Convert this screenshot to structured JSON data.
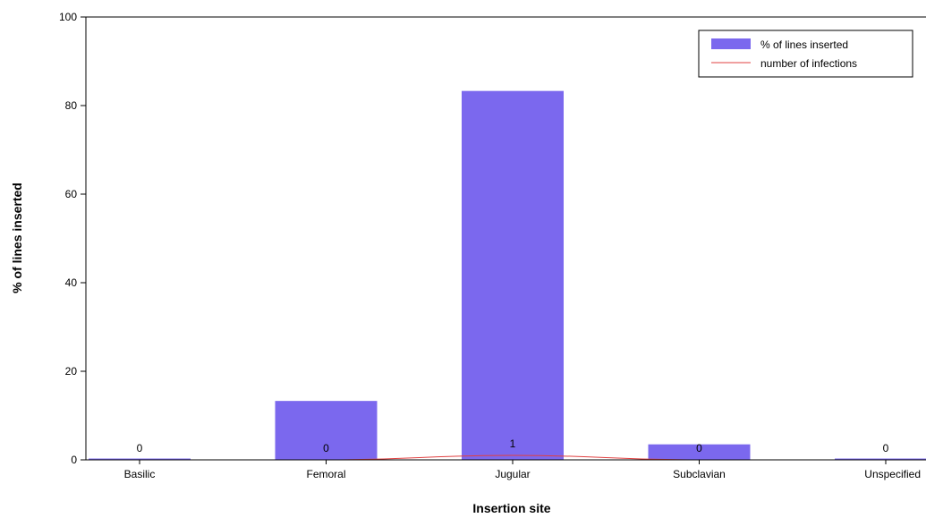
{
  "chart_data": {
    "type": "bar",
    "title": "",
    "xlabel": "Insertion site",
    "ylabel": "% of lines inserted",
    "ylim": [
      0,
      100
    ],
    "yticks": [
      0,
      20,
      40,
      60,
      80,
      100
    ],
    "categories": [
      "Basilic",
      "Femoral",
      "Jugular",
      "Subclavian",
      "Unspecified"
    ],
    "series": [
      {
        "name": "% of lines inserted",
        "kind": "bar",
        "color": "#7b68ee",
        "values": [
          0.3,
          13.3,
          83.3,
          3.5,
          0.3
        ]
      },
      {
        "name": "number of infections",
        "kind": "line",
        "color": "#e04040",
        "values": [
          0,
          0,
          1,
          0,
          0
        ]
      }
    ],
    "data_labels": [
      "0",
      "0",
      "1",
      "0",
      "0"
    ],
    "legend_position": "top-right",
    "grid": false
  }
}
